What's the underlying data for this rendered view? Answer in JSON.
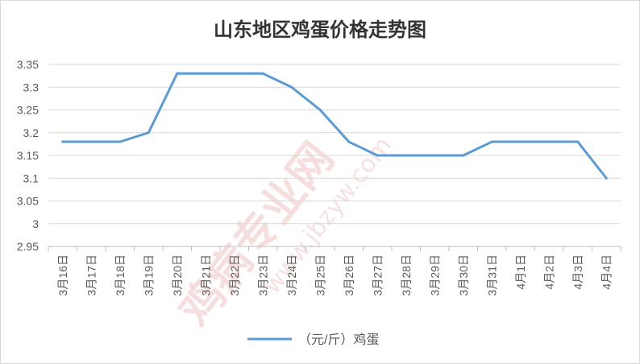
{
  "chart_data": {
    "type": "line",
    "title": "山东地区鸡蛋价格走势图",
    "categories": [
      "3月16日",
      "3月17日",
      "3月18日",
      "3月19日",
      "3月20日",
      "3月21日",
      "3月22日",
      "3月23日",
      "3月24日",
      "3月25日",
      "3月26日",
      "3月27日",
      "3月28日",
      "3月29日",
      "3月30日",
      "3月31日",
      "4月1日",
      "4月2日",
      "4月3日",
      "4月4日"
    ],
    "series": [
      {
        "name": "（元/斤）鸡蛋",
        "values": [
          3.18,
          3.18,
          3.18,
          3.2,
          3.33,
          3.33,
          3.33,
          3.33,
          3.3,
          3.25,
          3.18,
          3.15,
          3.15,
          3.15,
          3.15,
          3.18,
          3.18,
          3.18,
          3.18,
          3.1
        ],
        "color": "#5b9bd5"
      }
    ],
    "yticks": [
      "2.95",
      "3",
      "3.05",
      "3.1",
      "3.15",
      "3.2",
      "3.25",
      "3.3",
      "3.35"
    ],
    "ylim": [
      2.95,
      3.35
    ],
    "grid": true,
    "legend_position": "bottom"
  },
  "watermark": {
    "main": "鸡病专业网",
    "url": "www.jbzyw.com"
  }
}
